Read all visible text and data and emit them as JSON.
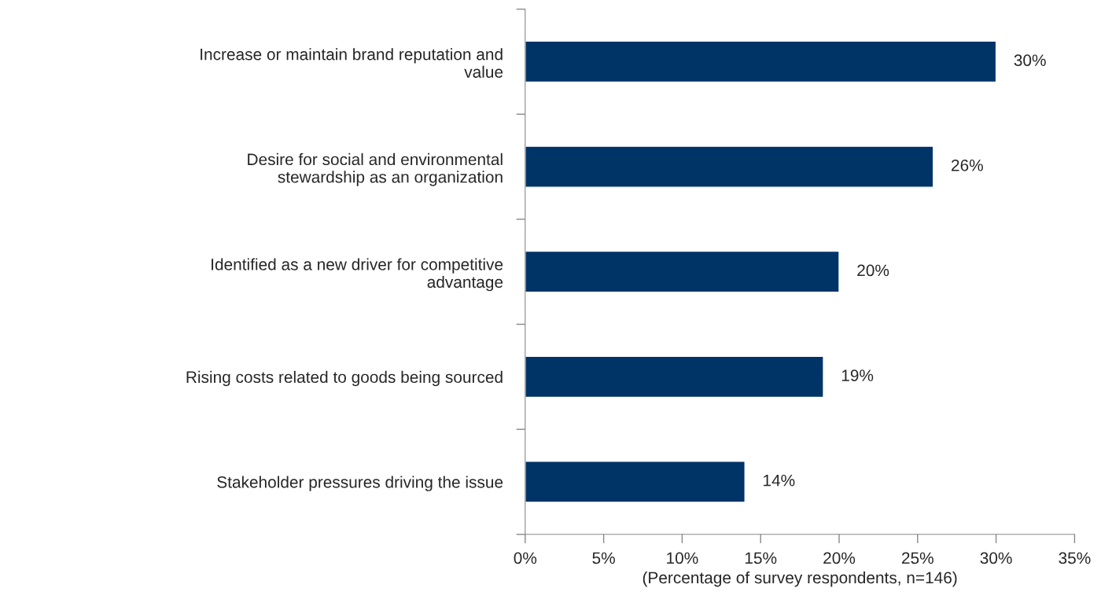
{
  "chart_data": {
    "type": "bar",
    "orientation": "horizontal",
    "categories": [
      "Increase or maintain brand reputation and\nvalue",
      "Desire for social and environmental\nstewardship as an organization",
      "Identified as a new driver for competitive\nadvantage",
      "Rising costs related to goods being sourced",
      "Stakeholder pressures driving the issue"
    ],
    "values": [
      30,
      26,
      20,
      19,
      14
    ],
    "color": "#003366",
    "value_labels": [
      "30%",
      "26%",
      "20%",
      "19%",
      "14%"
    ],
    "xlim": [
      0,
      35
    ],
    "xticks": [
      {
        "value": 0,
        "label": "0%"
      },
      {
        "value": 5,
        "label": "5%"
      },
      {
        "value": 10,
        "label": "10%"
      },
      {
        "value": 15,
        "label": "15%"
      },
      {
        "value": 20,
        "label": "20%"
      },
      {
        "value": 25,
        "label": "25%"
      },
      {
        "value": 30,
        "label": "30%"
      },
      {
        "value": 35,
        "label": "35%"
      }
    ],
    "xlabel": "(Percentage of survey respondents, n=146)",
    "grid": false,
    "legend": false
  }
}
